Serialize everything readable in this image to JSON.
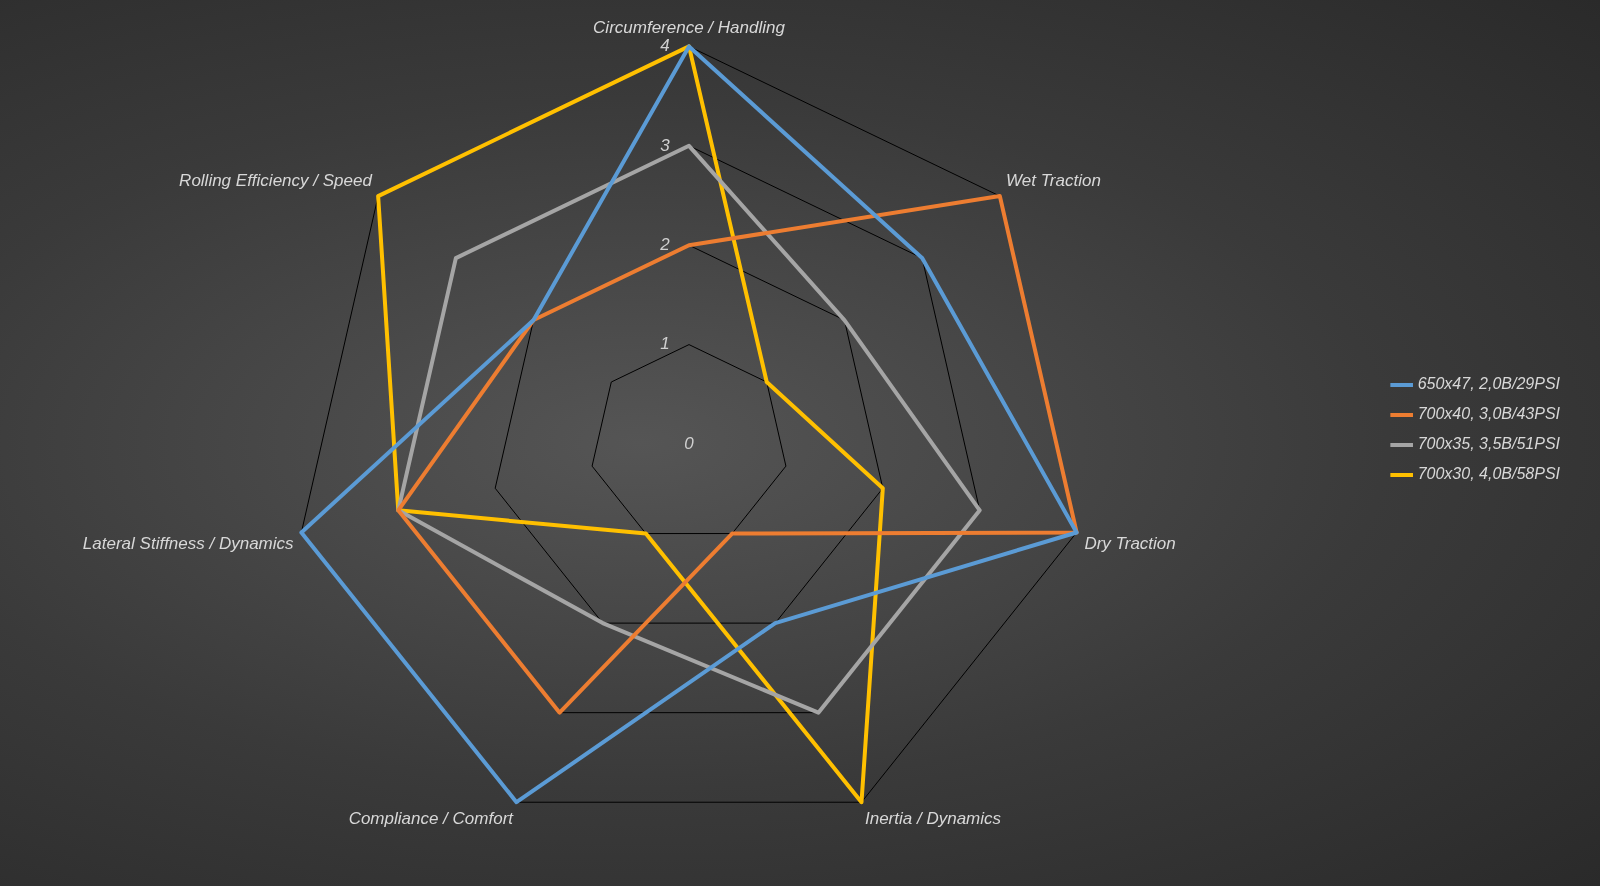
{
  "chart_data": {
    "type": "radar",
    "categories": [
      "Circumference / Handling",
      "Wet Traction",
      "Dry Traction",
      "Inertia / Dynamics",
      "Compliance / Comfort",
      "Lateral Stiffness / Dynamics",
      "Rolling Efficiency / Speed"
    ],
    "series": [
      {
        "name": "650x47, 2,0B/29PSI",
        "color": "#5b9bd5",
        "values": [
          4,
          3,
          4,
          2,
          4,
          4,
          2
        ]
      },
      {
        "name": "700x40, 3,0B/43PSI",
        "color": "#ed7d31",
        "values": [
          2,
          4,
          4,
          1,
          3,
          3,
          2
        ]
      },
      {
        "name": "700x35, 3,5B/51PSI",
        "color": "#a5a5a5",
        "values": [
          3,
          2,
          3,
          3,
          2,
          3,
          3
        ]
      },
      {
        "name": "700x30, 4,0B/58PSI",
        "color": "#ffc000",
        "values": [
          4,
          1,
          2,
          4,
          1,
          3,
          4
        ]
      }
    ],
    "ylim": [
      0,
      4
    ],
    "yticks": [
      0,
      1,
      2,
      3,
      4
    ],
    "grid": true,
    "legend": "right",
    "marker": "none"
  }
}
